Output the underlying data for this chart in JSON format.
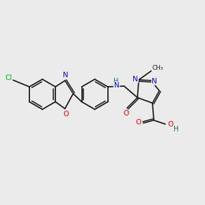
{
  "bg_color": "#ebebeb",
  "bond_color": "#1a1a1a",
  "atom_colors": {
    "C": "#1a1a1a",
    "N": "#0000ee",
    "O": "#ee0000",
    "Cl": "#00bb00",
    "H": "#006666"
  },
  "figsize": [
    3.0,
    3.0
  ],
  "dpi": 100
}
